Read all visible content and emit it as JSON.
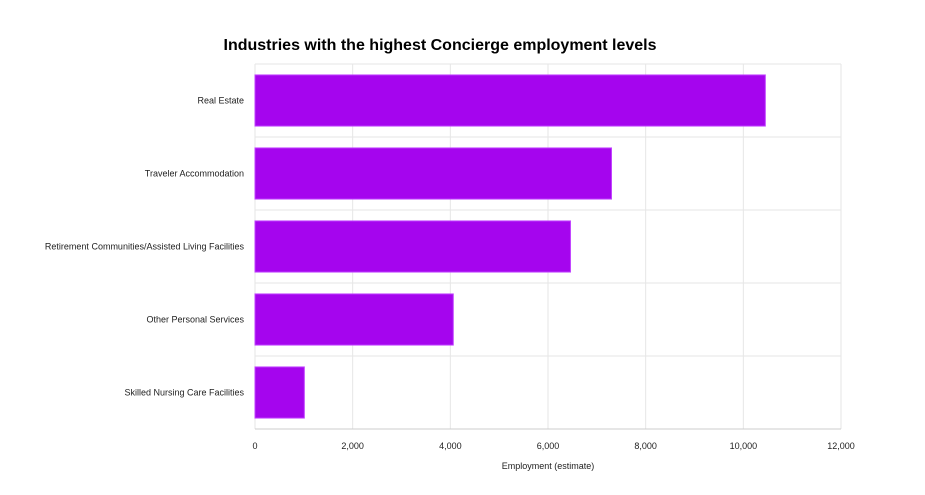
{
  "chart_data": {
    "type": "bar",
    "orientation": "horizontal",
    "title": "Industries with the highest Concierge employment levels",
    "xlabel": "Employment (estimate)",
    "ylabel": "",
    "categories": [
      "Real Estate",
      "Traveler Accommodation",
      "Retirement Communities/Assisted Living Facilities",
      "Other Personal Services",
      "Skilled Nursing Care Facilities"
    ],
    "values": [
      10450,
      7300,
      6460,
      4060,
      1010
    ],
    "xlim": [
      0,
      12000
    ],
    "xticks": [
      0,
      2000,
      4000,
      6000,
      8000,
      10000,
      12000
    ],
    "xtick_labels": [
      "0",
      "2,000",
      "4,000",
      "6,000",
      "8,000",
      "10,000",
      "12,000"
    ],
    "grid": true,
    "legend": "none",
    "colors": {
      "bar_fill": "#a505ee",
      "bar_stroke": "#c040ff"
    }
  }
}
